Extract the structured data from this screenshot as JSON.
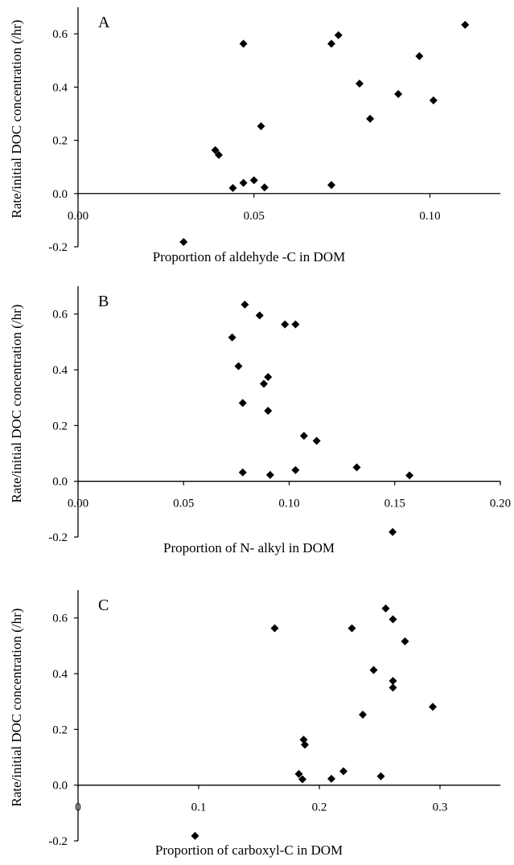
{
  "chart_data": [
    {
      "type": "scatter",
      "panel_label": "A",
      "xlabel": "Proportion of aldehyde -C in DOM",
      "ylabel": "Rate/initial DOC concentration (/hr)",
      "xlim": [
        0,
        0.12
      ],
      "ylim": [
        -0.2,
        0.7
      ],
      "x_ticks": [
        0,
        0.05,
        0.1
      ],
      "x_tick_labels": [
        "0.00",
        "0.05",
        "0.10"
      ],
      "y_ticks": [
        -0.2,
        0,
        0.2,
        0.4,
        0.6
      ],
      "y_tick_labels": [
        "-0.2",
        "0.0",
        "0.2",
        "0.4",
        "0.6"
      ],
      "marker": "diamond",
      "color": "#000000",
      "points": [
        {
          "x": 0.03,
          "y": -0.182
        },
        {
          "x": 0.039,
          "y": 0.163
        },
        {
          "x": 0.04,
          "y": 0.145
        },
        {
          "x": 0.044,
          "y": 0.021
        },
        {
          "x": 0.047,
          "y": 0.04
        },
        {
          "x": 0.047,
          "y": 0.563
        },
        {
          "x": 0.05,
          "y": 0.05
        },
        {
          "x": 0.052,
          "y": 0.253
        },
        {
          "x": 0.053,
          "y": 0.023
        },
        {
          "x": 0.072,
          "y": 0.032
        },
        {
          "x": 0.072,
          "y": 0.563
        },
        {
          "x": 0.074,
          "y": 0.595
        },
        {
          "x": 0.08,
          "y": 0.413
        },
        {
          "x": 0.083,
          "y": 0.281
        },
        {
          "x": 0.091,
          "y": 0.374
        },
        {
          "x": 0.097,
          "y": 0.516
        },
        {
          "x": 0.101,
          "y": 0.35
        },
        {
          "x": 0.11,
          "y": 0.634
        }
      ]
    },
    {
      "type": "scatter",
      "panel_label": "B",
      "xlabel": "Proportion of N- alkyl in DOM",
      "ylabel": "Rate/initial DOC concentration (/hr)",
      "xlim": [
        0,
        0.2
      ],
      "ylim": [
        -0.2,
        0.7
      ],
      "x_ticks": [
        0,
        0.05,
        0.1,
        0.15,
        0.2
      ],
      "x_tick_labels": [
        "0.00",
        "0.05",
        "0.10",
        "0.15",
        "0.20"
      ],
      "y_ticks": [
        -0.2,
        0,
        0.2,
        0.4,
        0.6
      ],
      "y_tick_labels": [
        "-0.2",
        "0.0",
        "0.2",
        "0.4",
        "0.6"
      ],
      "marker": "diamond",
      "color": "#000000",
      "points": [
        {
          "x": 0.073,
          "y": 0.516
        },
        {
          "x": 0.076,
          "y": 0.413
        },
        {
          "x": 0.078,
          "y": 0.032
        },
        {
          "x": 0.078,
          "y": 0.281
        },
        {
          "x": 0.079,
          "y": 0.634
        },
        {
          "x": 0.086,
          "y": 0.595
        },
        {
          "x": 0.088,
          "y": 0.35
        },
        {
          "x": 0.09,
          "y": 0.253
        },
        {
          "x": 0.09,
          "y": 0.374
        },
        {
          "x": 0.091,
          "y": 0.023
        },
        {
          "x": 0.098,
          "y": 0.563
        },
        {
          "x": 0.103,
          "y": 0.563
        },
        {
          "x": 0.103,
          "y": 0.04
        },
        {
          "x": 0.107,
          "y": 0.163
        },
        {
          "x": 0.113,
          "y": 0.145
        },
        {
          "x": 0.132,
          "y": 0.05
        },
        {
          "x": 0.149,
          "y": -0.182
        },
        {
          "x": 0.157,
          "y": 0.021
        }
      ]
    },
    {
      "type": "scatter",
      "panel_label": "C",
      "xlabel": "Proportion of carboxyl-C in DOM",
      "ylabel": "Rate/initial DOC concentration (/hr)",
      "xlim": [
        0,
        0.35
      ],
      "ylim": [
        -0.2,
        0.7
      ],
      "x_ticks": [
        0,
        0.1,
        0.2,
        0.3
      ],
      "x_tick_labels": [
        "0",
        "0.1",
        "0.2",
        "0.3"
      ],
      "y_ticks": [
        -0.2,
        0,
        0.2,
        0.4,
        0.6
      ],
      "y_tick_labels": [
        "-0.2",
        "0.0",
        "0.2",
        "0.4",
        "0.6"
      ],
      "marker": "diamond",
      "color": "#000000",
      "points": [
        {
          "x": 0.097,
          "y": -0.182
        },
        {
          "x": 0.163,
          "y": 0.563
        },
        {
          "x": 0.183,
          "y": 0.04
        },
        {
          "x": 0.186,
          "y": 0.021
        },
        {
          "x": 0.187,
          "y": 0.163
        },
        {
          "x": 0.188,
          "y": 0.145
        },
        {
          "x": 0.21,
          "y": 0.023
        },
        {
          "x": 0.22,
          "y": 0.05
        },
        {
          "x": 0.227,
          "y": 0.563
        },
        {
          "x": 0.236,
          "y": 0.253
        },
        {
          "x": 0.245,
          "y": 0.413
        },
        {
          "x": 0.251,
          "y": 0.032
        },
        {
          "x": 0.255,
          "y": 0.634
        },
        {
          "x": 0.261,
          "y": 0.595
        },
        {
          "x": 0.261,
          "y": 0.374
        },
        {
          "x": 0.261,
          "y": 0.35
        },
        {
          "x": 0.271,
          "y": 0.516
        },
        {
          "x": 0.294,
          "y": 0.281
        }
      ]
    }
  ]
}
